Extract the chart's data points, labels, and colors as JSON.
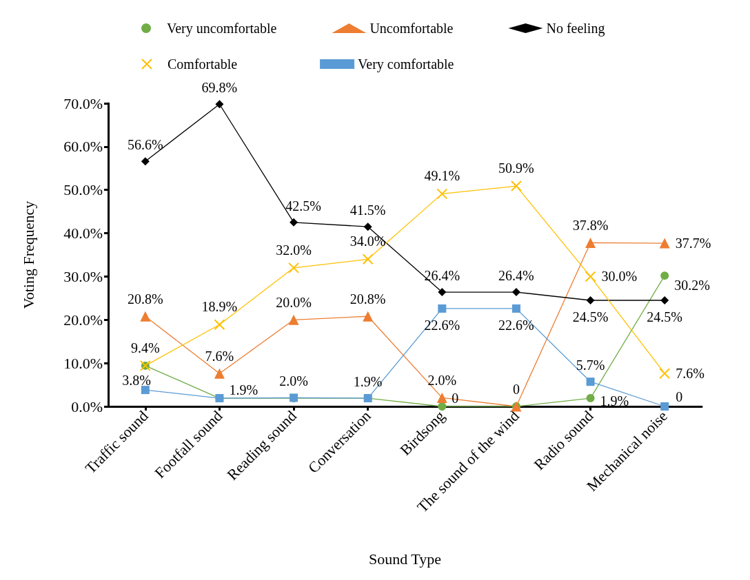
{
  "chart_data": {
    "type": "line",
    "xlabel": "Sound Type",
    "ylabel": "Voting Frequency",
    "categories": [
      "Traffic sound",
      "Footfall sound",
      "Reading sound",
      "Conversation",
      "Birdsong",
      "The sound of the wind",
      "Radio sound",
      "Mechanical noise"
    ],
    "ylim": [
      0,
      70
    ],
    "yticks": [
      {
        "value": 0,
        "label": "0.0%"
      },
      {
        "value": 10,
        "label": "10.0%"
      },
      {
        "value": 20,
        "label": "20.0%"
      },
      {
        "value": 30,
        "label": "30.0%"
      },
      {
        "value": 40,
        "label": "40.0%"
      },
      {
        "value": 50,
        "label": "50.0%"
      },
      {
        "value": 60,
        "label": "60.0%"
      },
      {
        "value": 70,
        "label": "70.0%"
      }
    ],
    "grid": false,
    "legend": "top",
    "line_style": "solid",
    "series": [
      {
        "name": "Very uncomfortable",
        "color": "#70ad47",
        "marker": "circle",
        "values": [
          9.4,
          1.9,
          1.9,
          1.9,
          0,
          0,
          1.9,
          30.2
        ],
        "value_labels": [
          null,
          null,
          null,
          null,
          "0",
          null,
          "1.9%",
          "30.2%"
        ]
      },
      {
        "name": "Uncomfortable",
        "color": "#ed7d31",
        "marker": "triangle",
        "values": [
          20.8,
          7.6,
          20.0,
          20.8,
          2.0,
          0,
          37.8,
          37.7
        ],
        "value_labels": [
          "20.8%",
          "7.6%",
          "20.0%",
          "20.8%",
          "2.0%",
          "0",
          "37.8%",
          "37.7%"
        ]
      },
      {
        "name": "No feeling",
        "color": "#000000",
        "marker": "diamond",
        "values": [
          56.6,
          69.8,
          42.5,
          41.5,
          26.4,
          26.4,
          24.5,
          24.5
        ],
        "value_labels": [
          "56.6%",
          "69.8%",
          "42.5%",
          "41.5%",
          "26.4%",
          "26.4%",
          "24.5%",
          "24.5%"
        ]
      },
      {
        "name": "Comfortable",
        "color": "#ffc000",
        "marker": "cross",
        "values": [
          9.4,
          18.9,
          32.0,
          34.0,
          49.1,
          50.9,
          30.0,
          7.6
        ],
        "value_labels": [
          "9.4%",
          "18.9%",
          "32.0%",
          "34.0%",
          "49.1%",
          "50.9%",
          "30.0%",
          "7.6%"
        ]
      },
      {
        "name": "Very comfortable",
        "color": "#5b9bd5",
        "marker": "square",
        "values": [
          3.8,
          1.9,
          2.0,
          1.9,
          22.6,
          22.6,
          5.7,
          0
        ],
        "value_labels": [
          "3.8%",
          "1.9%",
          "2.0%",
          "1.9%",
          "22.6%",
          "22.6%",
          "5.7%",
          "0"
        ]
      }
    ]
  }
}
